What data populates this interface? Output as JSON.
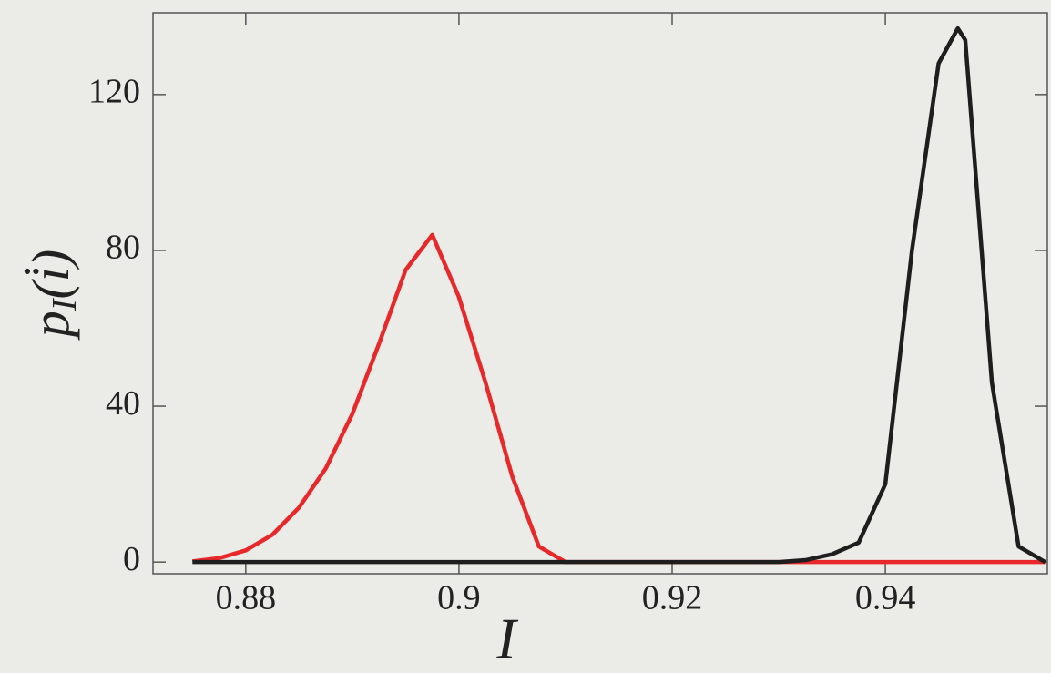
{
  "chart_data": {
    "type": "line",
    "xlabel": "I",
    "ylabel": [
      "p",
      "I",
      "(i̇)"
    ],
    "x": [
      0.875,
      0.8775,
      0.88,
      0.8825,
      0.885,
      0.8875,
      0.89,
      0.8925,
      0.895,
      0.8975,
      0.9,
      0.9025,
      0.905,
      0.9075,
      0.91,
      0.9125,
      0.915,
      0.9175,
      0.92,
      0.9225,
      0.925,
      0.9275,
      0.93,
      0.9325,
      0.935,
      0.9375,
      0.94,
      0.9425,
      0.945,
      0.9468,
      0.9475,
      0.95,
      0.9525,
      0.955
    ],
    "series": [
      {
        "color": "#e8282a",
        "values": [
          0.2,
          1,
          3,
          7,
          14,
          24,
          38,
          56,
          75,
          84,
          68,
          46,
          22,
          4,
          0,
          0,
          0,
          0,
          0,
          0,
          0,
          0,
          0,
          0,
          0,
          0,
          0,
          0,
          0,
          0,
          0,
          0,
          0,
          0
        ]
      },
      {
        "color": "#1e1e1e",
        "values": [
          0,
          0,
          0,
          0,
          0,
          0,
          0,
          0,
          0,
          0,
          0,
          0,
          0,
          0,
          0,
          0,
          0,
          0,
          0,
          0,
          0,
          0,
          0,
          0.5,
          2,
          5,
          20,
          80,
          128,
          137,
          134,
          46,
          4,
          0
        ]
      }
    ],
    "xlim": [
      0.8713,
      0.9552
    ],
    "ylim": [
      -3,
      141
    ],
    "xticks": [
      0.88,
      0.9,
      0.92,
      0.94
    ],
    "yticks": [
      0,
      40,
      80,
      120
    ]
  }
}
